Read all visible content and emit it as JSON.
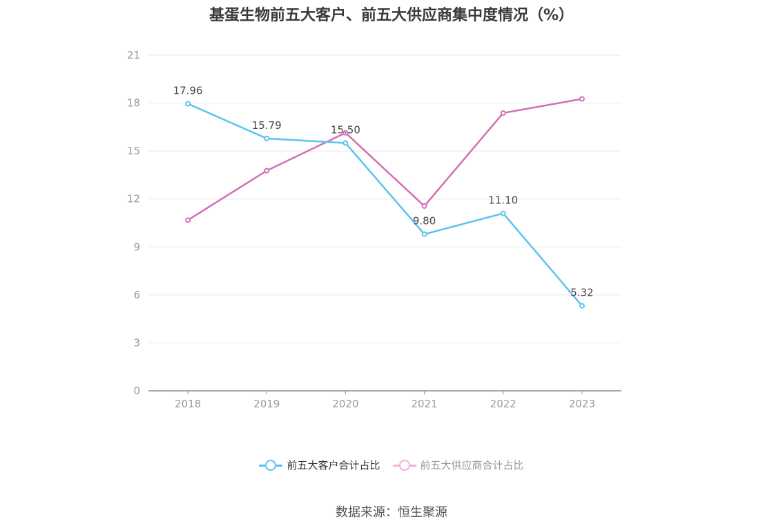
{
  "chart_data": {
    "type": "line",
    "title": "基蛋生物前五大客户、前五大供应商集中度情况（%）",
    "categories": [
      "2018",
      "2019",
      "2020",
      "2021",
      "2022",
      "2023"
    ],
    "ylim": [
      0,
      21
    ],
    "yticks": [
      "0",
      "3",
      "6",
      "9",
      "12",
      "15",
      "18",
      "21"
    ],
    "grid": true,
    "legend_position": "bottom",
    "series": [
      {
        "name": "前五大客户合计占比",
        "color": "#5bc2ef",
        "values": [
          17.96,
          15.79,
          15.5,
          9.8,
          11.1,
          5.32
        ],
        "labels": [
          "17.96",
          "15.79",
          "15.50",
          "9.80",
          "11.10",
          "5.32"
        ]
      },
      {
        "name": "前五大供应商合计占比",
        "color": "#d46eb3",
        "legend_color": "#eeb3d9",
        "values": [
          10.68,
          13.77,
          16.14,
          11.56,
          17.38,
          18.26
        ],
        "labels": []
      }
    ]
  },
  "source": "数据来源：恒生聚源"
}
